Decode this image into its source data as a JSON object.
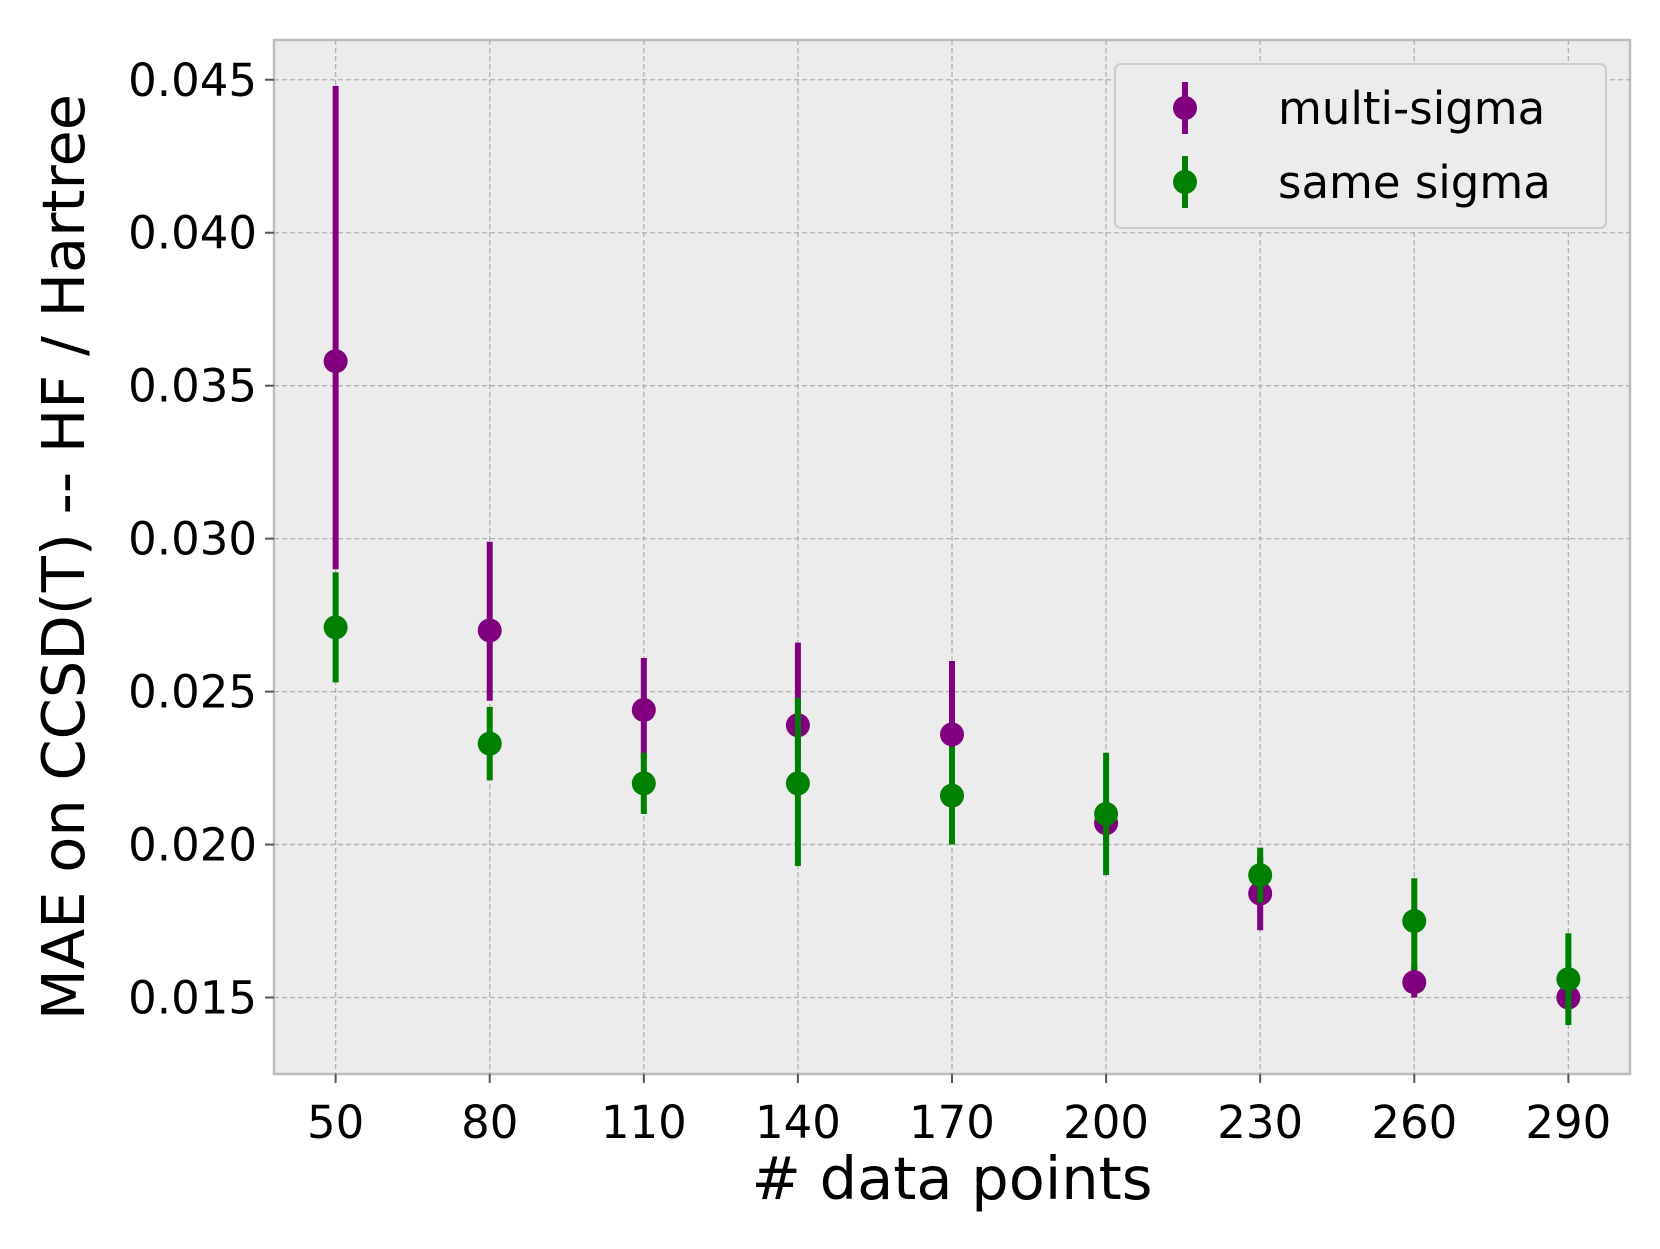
{
  "chart_data": {
    "type": "scatter",
    "title": "",
    "xlabel": "# data points",
    "ylabel": "MAE on CCSD(T) -- HF / Hartree",
    "x": [
      50,
      80,
      110,
      140,
      170,
      200,
      230,
      260,
      290
    ],
    "x_ticks": [
      "50",
      "80",
      "110",
      "140",
      "170",
      "200",
      "230",
      "260",
      "290"
    ],
    "y_ticks": [
      "0.015",
      "0.020",
      "0.025",
      "0.030",
      "0.035",
      "0.040",
      "0.045"
    ],
    "y_tick_values": [
      0.015,
      0.02,
      0.025,
      0.03,
      0.035,
      0.04,
      0.045
    ],
    "xlim": [
      38,
      302
    ],
    "ylim": [
      0.0125,
      0.0463
    ],
    "grid": true,
    "legend_position": "top-right",
    "series": [
      {
        "name": "multi-sigma",
        "color": "#800080",
        "values": [
          0.0358,
          0.027,
          0.0244,
          0.0239,
          0.0236,
          0.0207,
          0.0184,
          0.0155,
          0.015
        ],
        "err_low": [
          0.029,
          0.0247,
          0.0228,
          0.0228,
          0.0218,
          0.02,
          0.0172,
          0.015,
          0.0145
        ],
        "err_high": [
          0.0448,
          0.0299,
          0.0261,
          0.0266,
          0.026,
          0.0214,
          0.0196,
          0.0161,
          0.0155
        ]
      },
      {
        "name": "same sigma",
        "color": "#008000",
        "values": [
          0.0271,
          0.0233,
          0.022,
          0.022,
          0.0216,
          0.021,
          0.019,
          0.0175,
          0.0156
        ],
        "err_low": [
          0.0253,
          0.0221,
          0.021,
          0.0193,
          0.02,
          0.019,
          0.0181,
          0.0159,
          0.0141
        ],
        "err_high": [
          0.0289,
          0.0245,
          0.023,
          0.0248,
          0.0232,
          0.023,
          0.0199,
          0.0189,
          0.0171
        ]
      }
    ]
  }
}
